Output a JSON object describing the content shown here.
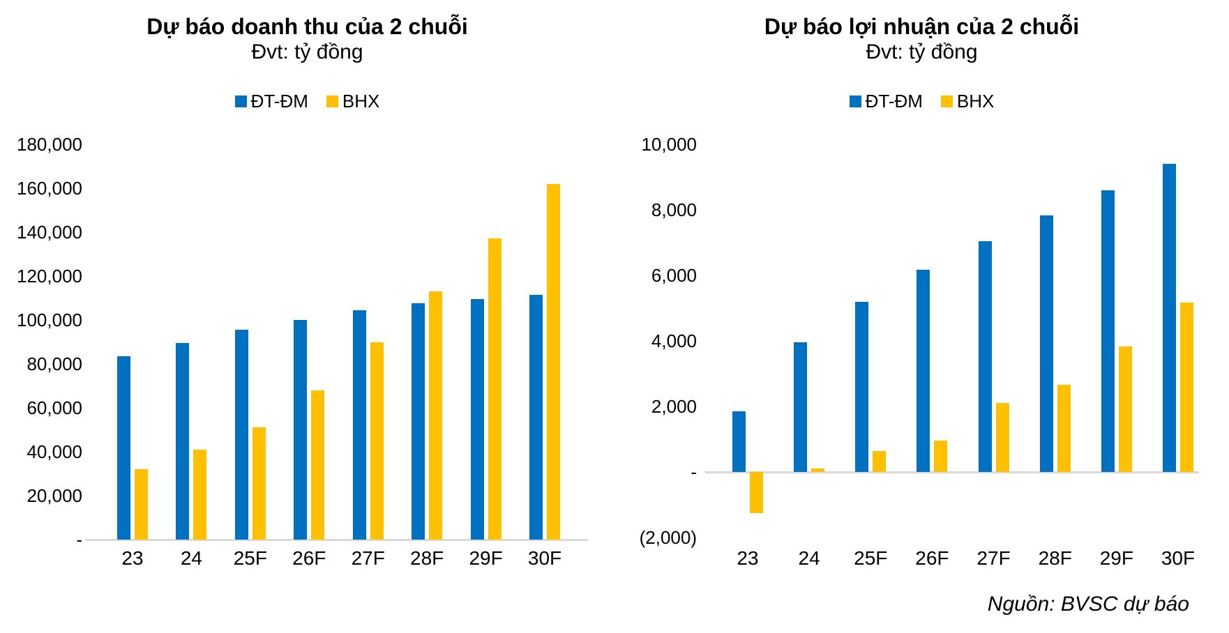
{
  "source_note": "Nguồn: BVSC dự báo",
  "colors": {
    "dtdm_blue": "#0070C0",
    "bhx_yellow": "#FFC000",
    "axis_gray": "#D9D9D9",
    "text": "#000000",
    "background": "#FFFFFF"
  },
  "chart_data": [
    {
      "type": "bar",
      "title": "Dự báo doanh thu của 2 chuỗi",
      "subtitle": "Đvt: tỷ đồng",
      "legend_position": "top",
      "grid": false,
      "categories": [
        "23",
        "24",
        "25F",
        "26F",
        "27F",
        "28F",
        "29F",
        "30F"
      ],
      "series": [
        {
          "name": "ĐT-ĐM",
          "color": "#0070C0",
          "values": [
            83500,
            89500,
            95500,
            100000,
            104500,
            107500,
            109500,
            111500
          ]
        },
        {
          "name": "BHX",
          "color": "#FFC000",
          "values": [
            32000,
            41000,
            51000,
            68000,
            90000,
            113000,
            137000,
            162000
          ]
        }
      ],
      "ylim": [
        0,
        180000
      ],
      "ytick_step": 20000,
      "ytick_labels": [
        "-",
        "20,000",
        "40,000",
        "60,000",
        "80,000",
        "100,000",
        "120,000",
        "140,000",
        "160,000",
        "180,000"
      ]
    },
    {
      "type": "bar",
      "title": "Dự báo lợi nhuận của 2 chuỗi",
      "subtitle": "Đvt: tỷ đồng",
      "legend_position": "top",
      "grid": false,
      "categories": [
        "23",
        "24",
        "25F",
        "26F",
        "27F",
        "28F",
        "29F",
        "30F"
      ],
      "series": [
        {
          "name": "ĐT-ĐM",
          "color": "#0070C0",
          "values": [
            1850,
            3950,
            5200,
            6170,
            7050,
            7830,
            8600,
            9400
          ]
        },
        {
          "name": "BHX",
          "color": "#FFC000",
          "values": [
            -1250,
            100,
            640,
            960,
            2100,
            2650,
            3830,
            5170
          ]
        }
      ],
      "ylim": [
        -2000,
        10000
      ],
      "ytick_step": 2000,
      "ytick_labels": [
        "(2,000)",
        "-",
        "2,000",
        "4,000",
        "6,000",
        "8,000",
        "10,000"
      ]
    }
  ]
}
